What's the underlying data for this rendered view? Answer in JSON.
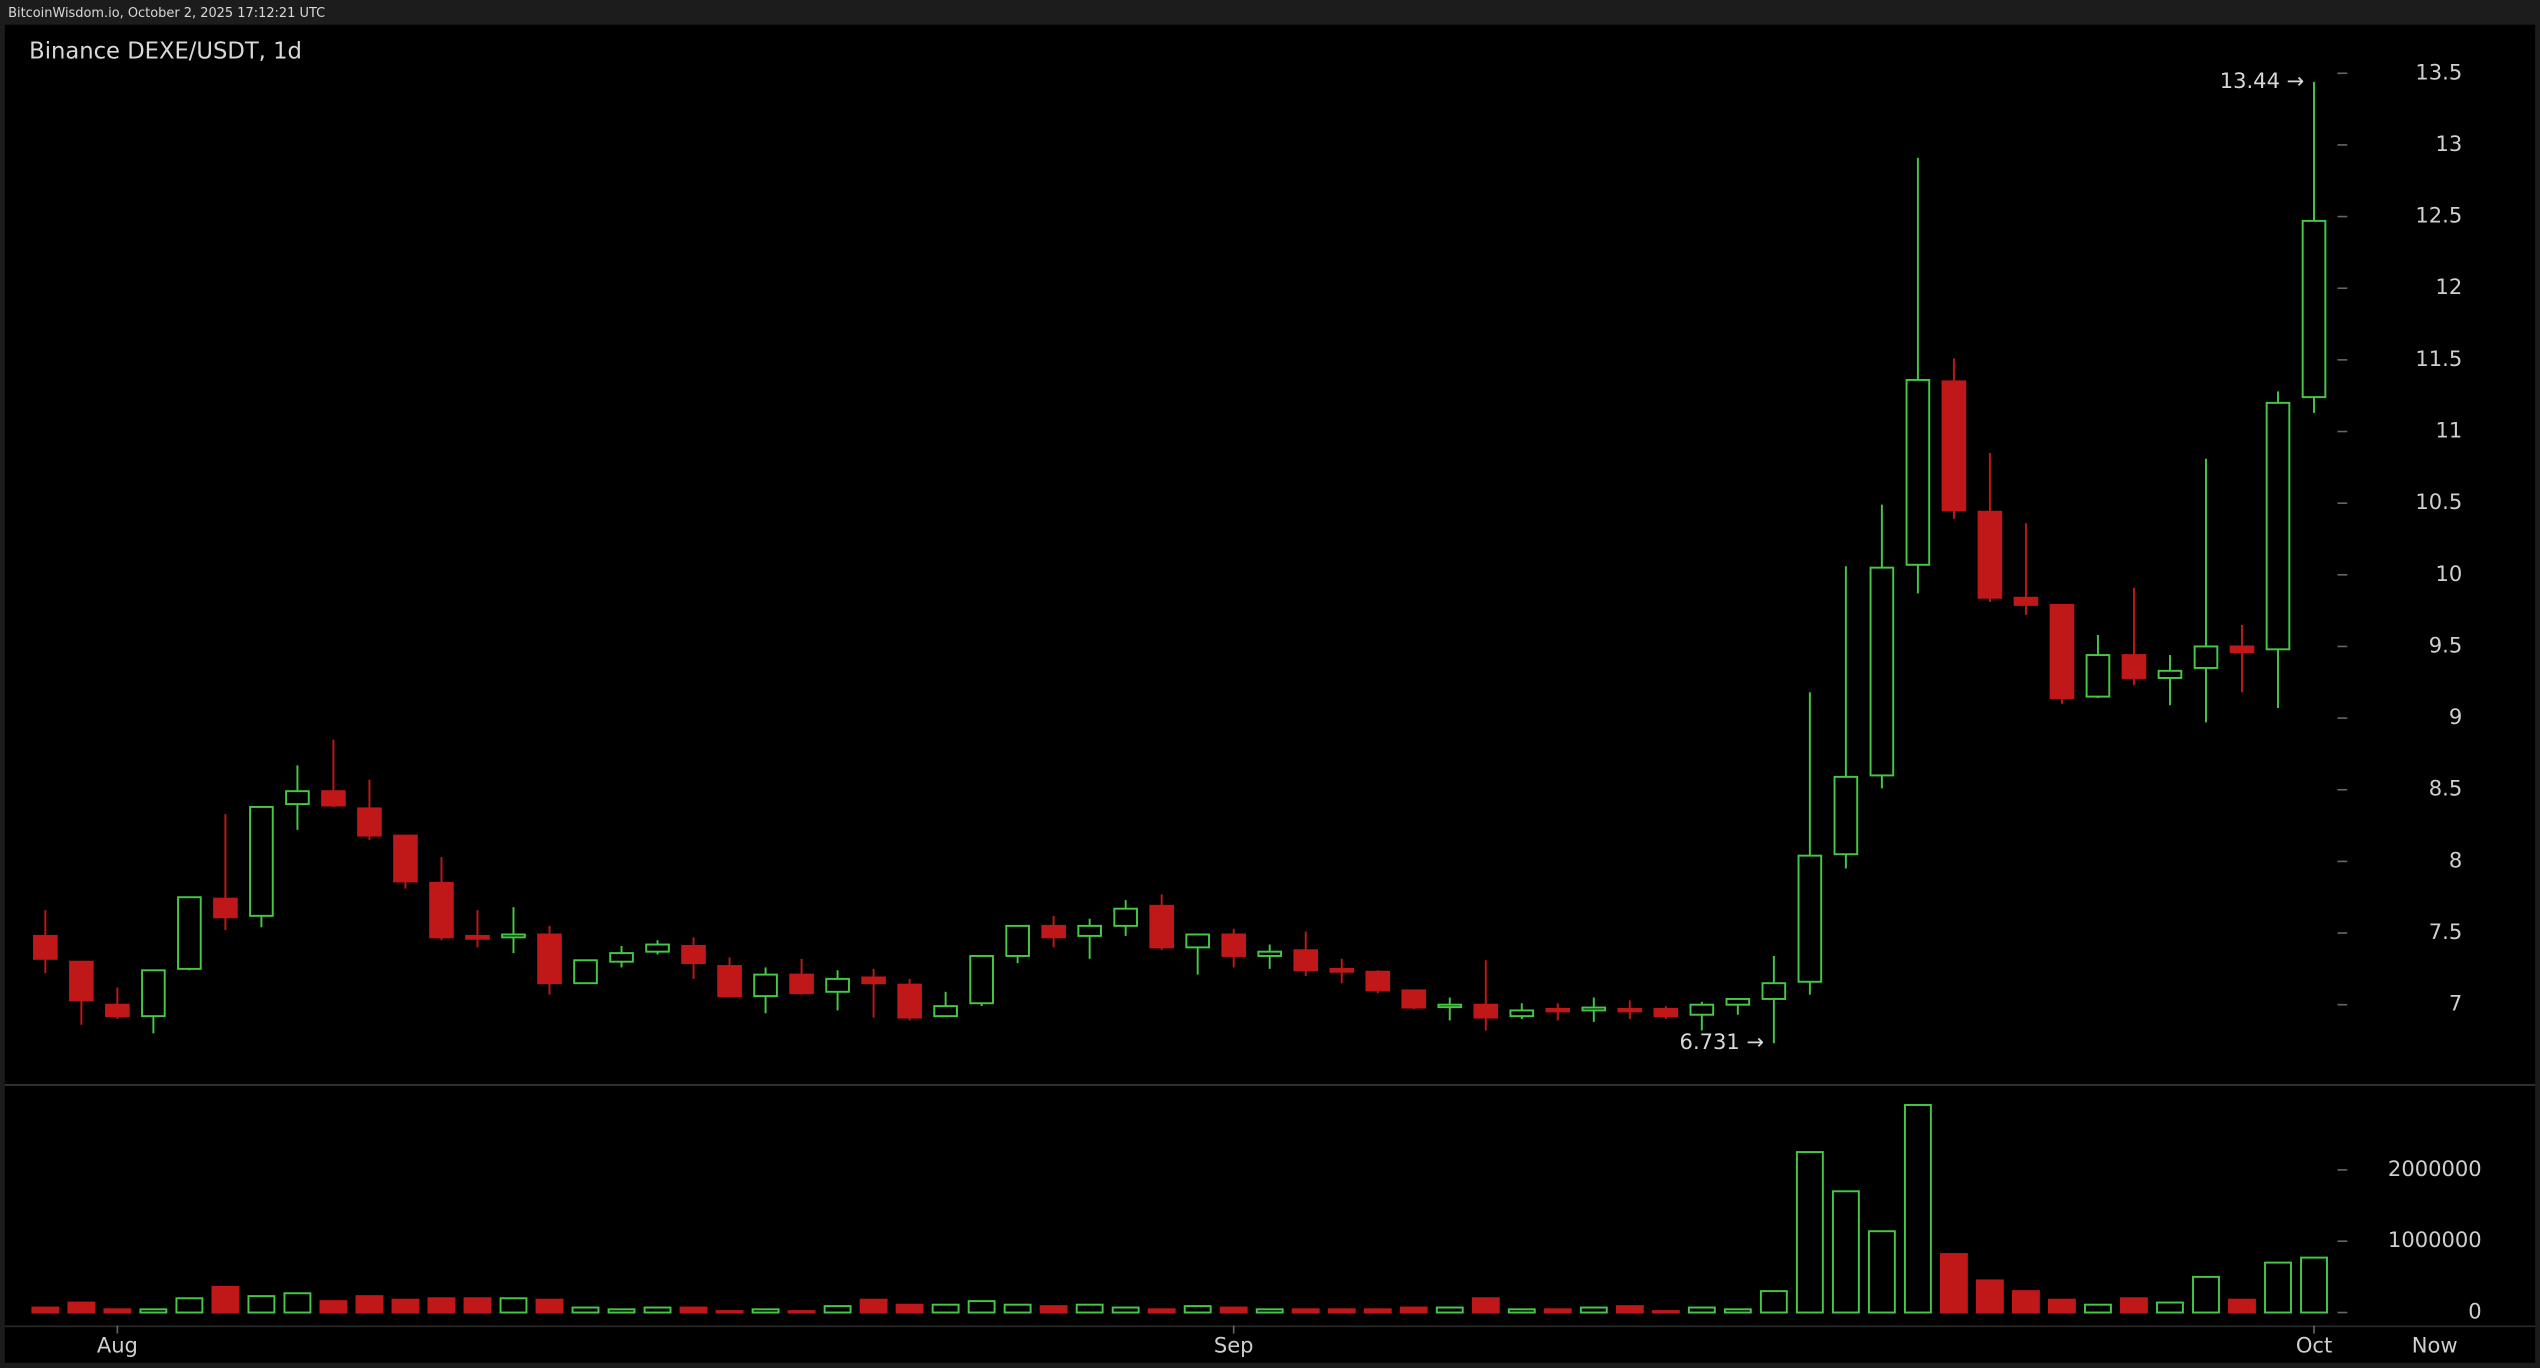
{
  "chart_data": {
    "type": "candlestick",
    "subtitle": "BitcoinWisdom.io, October 2, 2025 17:12:21 UTC",
    "title": "Binance DEXE/USDT, 1d",
    "categories": [
      null,
      null,
      "Aug",
      null,
      null,
      null,
      null,
      null,
      null,
      null,
      null,
      null,
      null,
      null,
      null,
      null,
      null,
      null,
      null,
      null,
      null,
      null,
      null,
      null,
      null,
      null,
      null,
      null,
      null,
      null,
      null,
      null,
      null,
      "Sep",
      null,
      null,
      null,
      null,
      null,
      null,
      null,
      null,
      null,
      null,
      null,
      null,
      null,
      null,
      null,
      null,
      null,
      null,
      null,
      null,
      null,
      null,
      null,
      null,
      null,
      null,
      null,
      null,
      null,
      "Oct"
    ],
    "end_label": "Now",
    "open": [
      7.48,
      7.3,
      7.0,
      6.92,
      7.25,
      7.74,
      7.62,
      8.4,
      8.49,
      8.37,
      8.18,
      7.85,
      7.48,
      7.47,
      7.49,
      7.15,
      7.3,
      7.37,
      7.41,
      7.27,
      7.06,
      7.21,
      7.09,
      7.19,
      7.14,
      6.92,
      7.01,
      7.34,
      7.55,
      7.48,
      7.55,
      7.69,
      7.4,
      7.49,
      7.34,
      7.38,
      7.25,
      7.23,
      7.1,
      6.99,
      7.0,
      6.92,
      6.97,
      6.96,
      6.97,
      6.97,
      6.93,
      7.0,
      7.04,
      7.16,
      8.05,
      8.6,
      10.07,
      11.35,
      10.44,
      9.84,
      9.79,
      9.15,
      9.44,
      9.28,
      9.35,
      9.5,
      9.48,
      11.24
    ],
    "high": [
      7.66,
      7.3,
      7.12,
      7.24,
      7.75,
      8.33,
      8.38,
      8.67,
      8.85,
      8.57,
      8.18,
      8.03,
      7.66,
      7.68,
      7.55,
      7.31,
      7.41,
      7.45,
      7.47,
      7.33,
      7.26,
      7.32,
      7.24,
      7.25,
      7.18,
      7.09,
      7.34,
      7.55,
      7.62,
      7.6,
      7.73,
      7.77,
      7.49,
      7.53,
      7.42,
      7.51,
      7.32,
      7.24,
      7.1,
      7.05,
      7.31,
      7.01,
      7.01,
      7.05,
      7.03,
      6.99,
      7.02,
      7.04,
      7.34,
      9.18,
      10.06,
      10.49,
      12.91,
      11.51,
      10.85,
      10.36,
      9.79,
      9.58,
      9.91,
      9.44,
      10.81,
      9.65,
      11.28,
      13.44
    ],
    "low": [
      7.22,
      6.86,
      6.9,
      6.8,
      7.24,
      7.52,
      7.54,
      8.22,
      8.38,
      8.15,
      7.81,
      7.45,
      7.4,
      7.36,
      7.07,
      7.15,
      7.26,
      7.35,
      7.18,
      7.06,
      6.94,
      7.07,
      6.96,
      6.91,
      6.89,
      6.92,
      6.99,
      7.29,
      7.4,
      7.32,
      7.48,
      7.38,
      7.21,
      7.26,
      7.25,
      7.2,
      7.15,
      7.08,
      6.97,
      6.89,
      6.82,
      6.9,
      6.89,
      6.88,
      6.9,
      6.9,
      6.82,
      6.93,
      6.731,
      7.07,
      7.95,
      8.51,
      9.87,
      10.39,
      9.81,
      9.72,
      9.1,
      9.14,
      9.23,
      9.09,
      8.97,
      9.18,
      9.07,
      11.13
    ],
    "close": [
      7.32,
      7.03,
      6.92,
      7.24,
      7.75,
      7.61,
      8.38,
      8.49,
      8.39,
      8.18,
      7.86,
      7.47,
      7.46,
      7.49,
      7.15,
      7.31,
      7.36,
      7.42,
      7.29,
      7.06,
      7.21,
      7.08,
      7.18,
      7.15,
      6.91,
      6.99,
      7.34,
      7.55,
      7.47,
      7.55,
      7.67,
      7.4,
      7.49,
      7.34,
      7.37,
      7.24,
      7.23,
      7.1,
      6.98,
      7.0,
      6.91,
      6.96,
      6.96,
      6.98,
      6.96,
      6.92,
      7.0,
      7.04,
      7.15,
      8.04,
      8.59,
      10.05,
      11.36,
      10.45,
      9.84,
      9.79,
      9.14,
      9.44,
      9.28,
      9.33,
      9.5,
      9.46,
      11.2,
      12.47
    ],
    "volume": [
      70000,
      140000,
      45000,
      45000,
      200000,
      360000,
      230000,
      270000,
      160000,
      230000,
      180000,
      200000,
      200000,
      200000,
      180000,
      70000,
      45000,
      70000,
      70000,
      20000,
      45000,
      20000,
      90000,
      180000,
      110000,
      110000,
      160000,
      110000,
      90000,
      110000,
      70000,
      45000,
      90000,
      70000,
      45000,
      45000,
      45000,
      45000,
      70000,
      70000,
      200000,
      45000,
      45000,
      70000,
      90000,
      20000,
      70000,
      45000,
      300000,
      2250000,
      1700000,
      1140000,
      2910000,
      820000,
      450000,
      300000,
      180000,
      110000,
      200000,
      140000,
      500000,
      180000,
      700000,
      770000
    ],
    "up_color": "#46c846",
    "down_color": "#c01818",
    "ylim": [
      6.457,
      13.839
    ],
    "yticks": [
      7,
      7.5,
      8,
      8.5,
      9,
      9.5,
      10,
      10.5,
      11,
      11.5,
      12,
      12.5,
      13,
      13.5
    ],
    "y2lim": [
      0,
      3180000
    ],
    "y2ticks": [
      0,
      1000000,
      2000000
    ],
    "annotations": [
      {
        "value": 13.44,
        "label": "13.44 →"
      },
      {
        "value": 6.731,
        "label": "6.731 →"
      }
    ]
  }
}
